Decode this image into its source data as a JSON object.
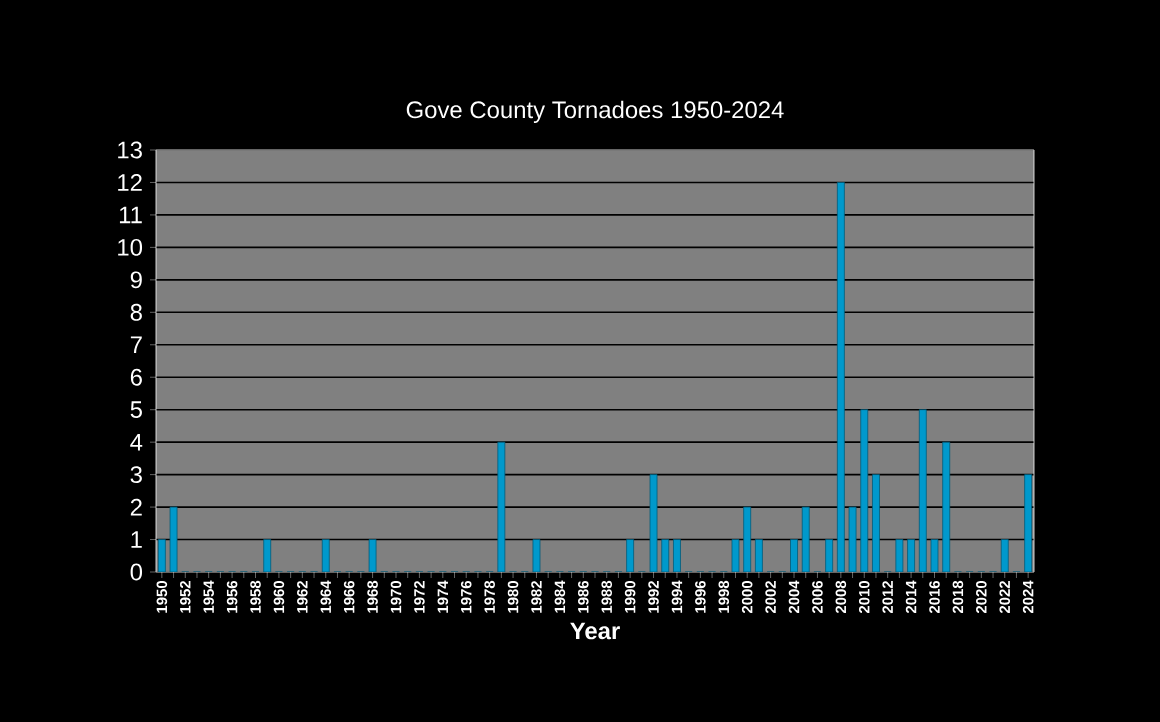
{
  "chart_data": {
    "type": "bar",
    "title": "Gove County Tornadoes 1950-2024",
    "xlabel": "Year",
    "categories": [
      "1950",
      null,
      "1952",
      null,
      "1954",
      null,
      "1956",
      null,
      "1958",
      null,
      "1960",
      null,
      "1962",
      null,
      "1964",
      null,
      "1966",
      null,
      "1968",
      null,
      "1970",
      null,
      "1972",
      null,
      "1974",
      null,
      "1976",
      null,
      "1978",
      null,
      "1980",
      null,
      "1982",
      null,
      "1984",
      null,
      "1986",
      null,
      "1988",
      null,
      "1990",
      null,
      "1992",
      null,
      "1994",
      null,
      "1996",
      null,
      "1998",
      null,
      "2000",
      null,
      "2002",
      null,
      "2004",
      null,
      "2006",
      null,
      "2008",
      null,
      "2010",
      null,
      "2012",
      null,
      "2014",
      null,
      "2016",
      null,
      "2018",
      null,
      "2020",
      null,
      "2022",
      null,
      "2024"
    ],
    "values": [
      1,
      2,
      0,
      0,
      0,
      0,
      0,
      0,
      0,
      1,
      0,
      0,
      0,
      0,
      1,
      0,
      0,
      0,
      1,
      0,
      0,
      0,
      0,
      0,
      0,
      0,
      0,
      0,
      0,
      4,
      0,
      0,
      1,
      0,
      0,
      0,
      0,
      0,
      0,
      0,
      1,
      0,
      3,
      1,
      1,
      0,
      0,
      0,
      0,
      1,
      2,
      1,
      0,
      0,
      1,
      2,
      0,
      1,
      12,
      2,
      5,
      3,
      0,
      1,
      1,
      5,
      1,
      4,
      0,
      0,
      0,
      0,
      1,
      0,
      3
    ],
    "color": "#0099cc",
    "ylim": [
      0,
      13
    ],
    "yticks": [
      0,
      1,
      2,
      3,
      4,
      5,
      6,
      7,
      8,
      9,
      10,
      11,
      12,
      13
    ],
    "grid": "y"
  }
}
